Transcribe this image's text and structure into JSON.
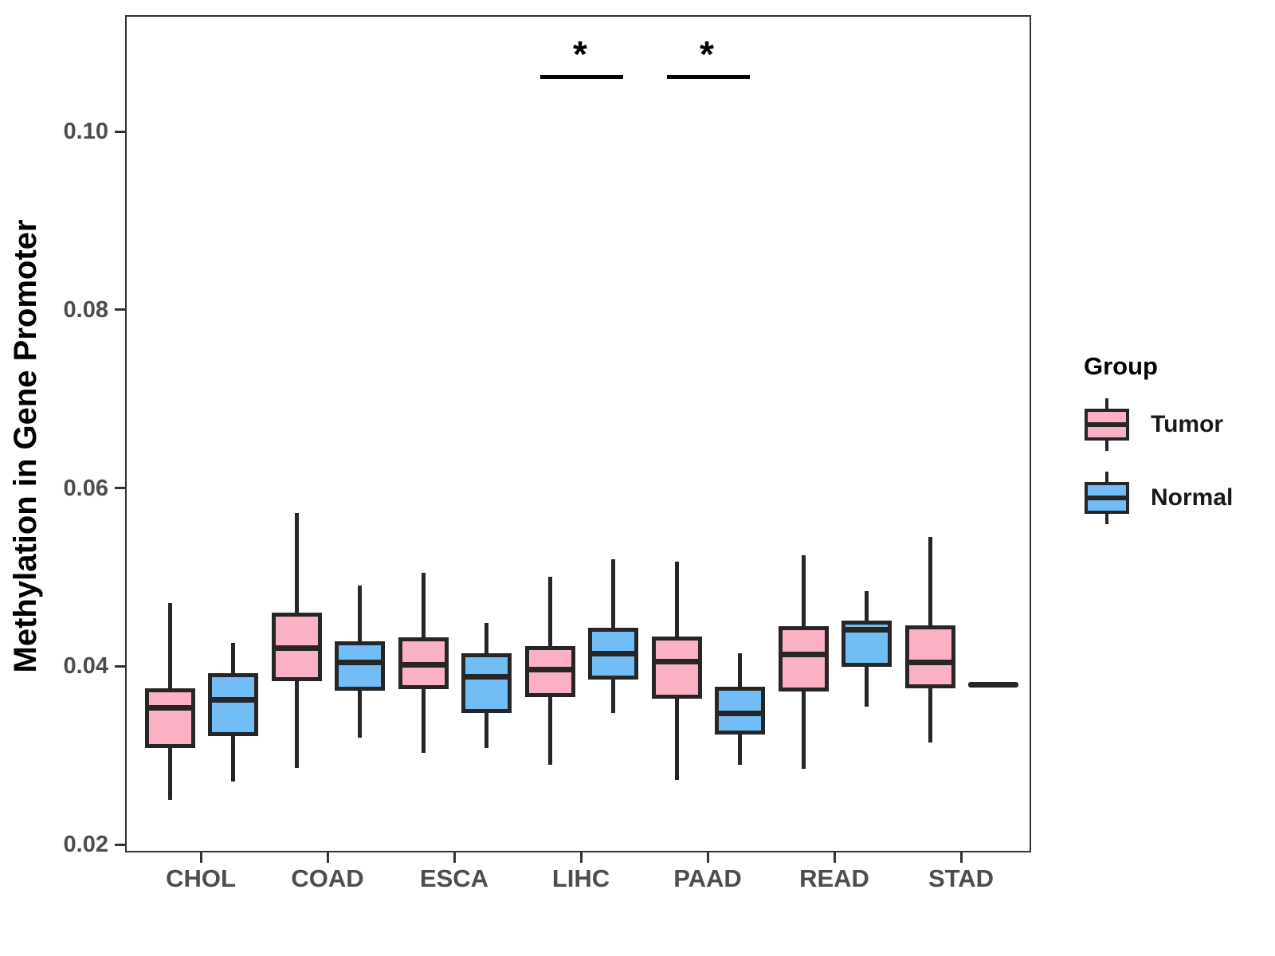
{
  "chart_data": {
    "type": "boxplot",
    "title": "",
    "xlabel": "",
    "ylabel": "Methylation in Gene Promoter",
    "grid": false,
    "ylim": [
      0.019,
      0.113
    ],
    "yticks": [
      {
        "label": "0.02",
        "value": 0.02
      },
      {
        "label": "0.04",
        "value": 0.04
      },
      {
        "label": "0.06",
        "value": 0.06
      },
      {
        "label": "0.08",
        "value": 0.08
      },
      {
        "label": "0.10",
        "value": 0.1
      }
    ],
    "categories": [
      "CHOL",
      "COAD",
      "ESCA",
      "LIHC",
      "PAAD",
      "READ",
      "STAD"
    ],
    "series": [
      {
        "name": "Tumor",
        "color": "#FBB1C3",
        "data": [
          {
            "category": "CHOL",
            "min": 0.0252,
            "q1": 0.031,
            "median": 0.0355,
            "q3": 0.0377,
            "max": 0.0473
          },
          {
            "category": "COAD",
            "min": 0.0288,
            "q1": 0.0385,
            "median": 0.0422,
            "q3": 0.0462,
            "max": 0.0574
          },
          {
            "category": "ESCA",
            "min": 0.0305,
            "q1": 0.0376,
            "median": 0.0403,
            "q3": 0.0434,
            "max": 0.0507
          },
          {
            "category": "LIHC",
            "min": 0.0291,
            "q1": 0.0367,
            "median": 0.0398,
            "q3": 0.0424,
            "max": 0.0502
          },
          {
            "category": "PAAD",
            "min": 0.0274,
            "q1": 0.0365,
            "median": 0.0407,
            "q3": 0.0435,
            "max": 0.0519
          },
          {
            "category": "READ",
            "min": 0.0287,
            "q1": 0.0373,
            "median": 0.0415,
            "q3": 0.0447,
            "max": 0.0526
          },
          {
            "category": "STAD",
            "min": 0.0316,
            "q1": 0.0377,
            "median": 0.0406,
            "q3": 0.0448,
            "max": 0.0547
          }
        ]
      },
      {
        "name": "Normal",
        "color": "#73BDF7",
        "data": [
          {
            "category": "CHOL",
            "min": 0.0272,
            "q1": 0.0323,
            "median": 0.0364,
            "q3": 0.0394,
            "max": 0.0428
          },
          {
            "category": "COAD",
            "min": 0.0322,
            "q1": 0.0374,
            "median": 0.0406,
            "q3": 0.043,
            "max": 0.0492
          },
          {
            "category": "ESCA",
            "min": 0.031,
            "q1": 0.0349,
            "median": 0.039,
            "q3": 0.0416,
            "max": 0.045
          },
          {
            "category": "LIHC",
            "min": 0.0349,
            "q1": 0.0387,
            "median": 0.0416,
            "q3": 0.0445,
            "max": 0.0522
          },
          {
            "category": "PAAD",
            "min": 0.0291,
            "q1": 0.0325,
            "median": 0.0349,
            "q3": 0.0379,
            "max": 0.0416
          },
          {
            "category": "READ",
            "min": 0.0356,
            "q1": 0.0401,
            "median": 0.0443,
            "q3": 0.0453,
            "max": 0.0486
          },
          {
            "category": "STAD",
            "min": 0.0381,
            "q1": 0.0381,
            "median": 0.0381,
            "q3": 0.0381,
            "max": 0.0381
          }
        ]
      }
    ],
    "significance": [
      {
        "category": "LIHC",
        "label": "*"
      },
      {
        "category": "PAAD",
        "label": "*"
      }
    ],
    "legend": {
      "title": "Group",
      "position": "right",
      "entries": [
        "Tumor",
        "Normal"
      ]
    },
    "style": {
      "line_color": "#262626",
      "panel_border_color": "#333333",
      "tick_label_color": "#4d4d4d",
      "background": "#ffffff"
    }
  }
}
